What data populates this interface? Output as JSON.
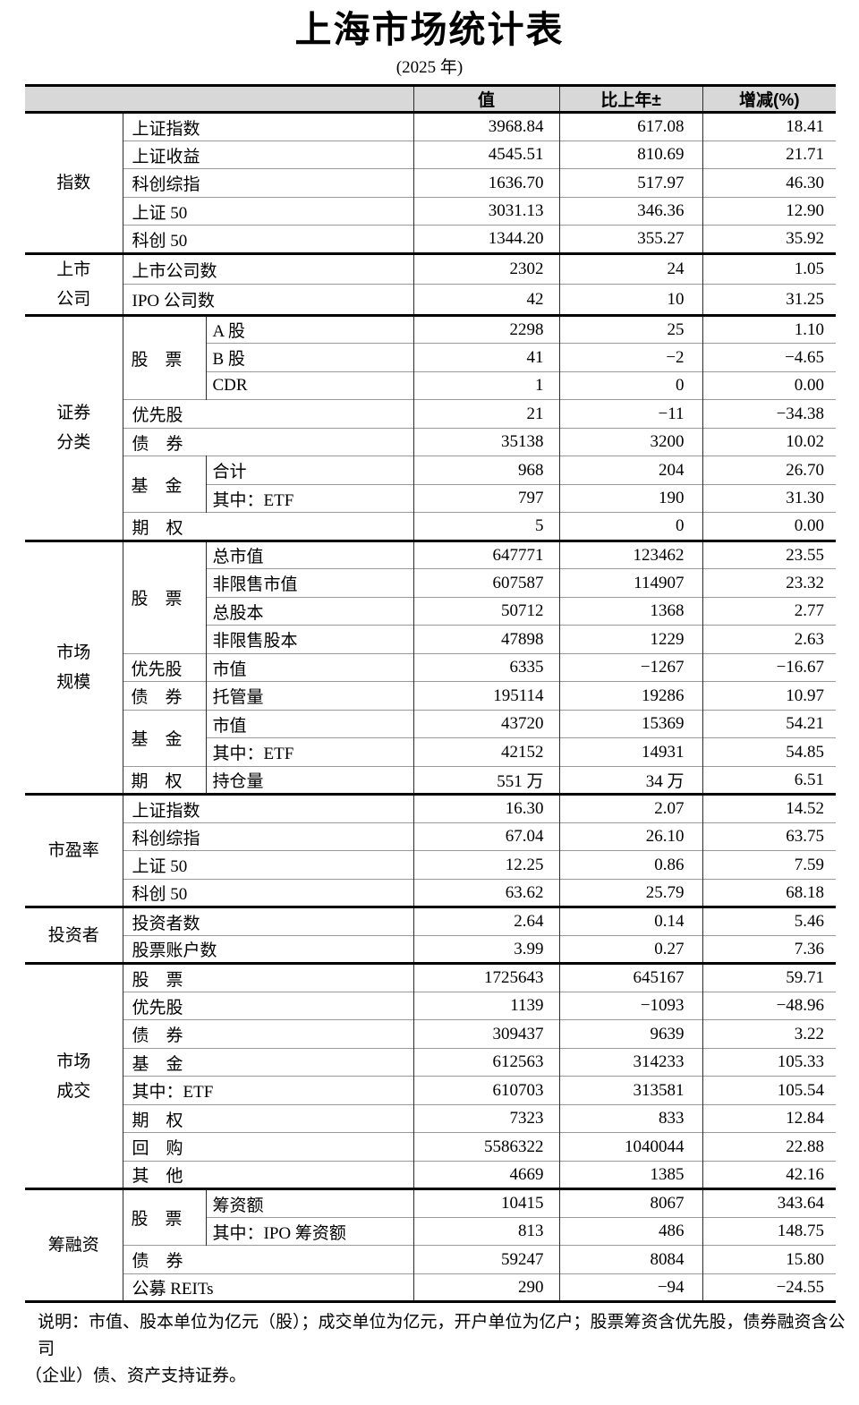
{
  "title": "上海市场统计表",
  "subtitle": "(2025 年)",
  "colors": {
    "header_bg": "#d8d8d8",
    "rule": "#000000",
    "thin_rule": "#9a9a9a"
  },
  "header": {
    "blank": "",
    "value": "值",
    "change": "比上年±",
    "pct": "增减(%)"
  },
  "sections": [
    {
      "group": "指数",
      "rows": [
        {
          "wide": true,
          "label": "上证指数",
          "value": "3968.84",
          "change": "617.08",
          "pct": "18.41"
        },
        {
          "wide": true,
          "label": "上证收益",
          "value": "4545.51",
          "change": "810.69",
          "pct": "21.71"
        },
        {
          "wide": true,
          "label": "科创综指",
          "value": "1636.70",
          "change": "517.97",
          "pct": "46.30"
        },
        {
          "wide": true,
          "label": "上证 50",
          "value": "3031.13",
          "change": "346.36",
          "pct": "12.90"
        },
        {
          "wide": true,
          "label": "科创 50",
          "value": "1344.20",
          "change": "355.27",
          "pct": "35.92"
        }
      ]
    },
    {
      "group": "上市\n公司",
      "rows": [
        {
          "wide": true,
          "label": "上市公司数",
          "value": "2302",
          "change": "24",
          "pct": "1.05"
        },
        {
          "wide": true,
          "label": "IPO 公司数",
          "value": "42",
          "change": "10",
          "pct": "31.25"
        }
      ]
    },
    {
      "group": "证券\n分类",
      "rows": [
        {
          "sub": "股　票",
          "sub_span": 3,
          "label": "A 股",
          "value": "2298",
          "change": "25",
          "pct": "1.10"
        },
        {
          "label": "B 股",
          "value": "41",
          "change": "−2",
          "pct": "−4.65"
        },
        {
          "label": "CDR",
          "value": "1",
          "change": "0",
          "pct": "0.00"
        },
        {
          "wide": true,
          "label": "优先股",
          "value": "21",
          "change": "−11",
          "pct": "−34.38"
        },
        {
          "wide": true,
          "label": "债　券",
          "value": "35138",
          "change": "3200",
          "pct": "10.02"
        },
        {
          "sub": "基　金",
          "sub_span": 2,
          "label": "合计",
          "value": "968",
          "change": "204",
          "pct": "26.70"
        },
        {
          "label": "其中：ETF",
          "value": "797",
          "change": "190",
          "pct": "31.30"
        },
        {
          "wide": true,
          "label": "期　权",
          "value": "5",
          "change": "0",
          "pct": "0.00"
        }
      ]
    },
    {
      "group": "市场\n规模",
      "rows": [
        {
          "sub": "股　票",
          "sub_span": 4,
          "label": "总市值",
          "value": "647771",
          "change": "123462",
          "pct": "23.55"
        },
        {
          "label": "非限售市值",
          "value": "607587",
          "change": "114907",
          "pct": "23.32"
        },
        {
          "label": "总股本",
          "value": "50712",
          "change": "1368",
          "pct": "2.77"
        },
        {
          "label": "非限售股本",
          "value": "47898",
          "change": "1229",
          "pct": "2.63"
        },
        {
          "sub": "优先股",
          "sub_span": 1,
          "label": "市值",
          "value": "6335",
          "change": "−1267",
          "pct": "−16.67"
        },
        {
          "sub": "债　券",
          "sub_span": 1,
          "label": "托管量",
          "value": "195114",
          "change": "19286",
          "pct": "10.97"
        },
        {
          "sub": "基　金",
          "sub_span": 2,
          "label": "市值",
          "value": "43720",
          "change": "15369",
          "pct": "54.21"
        },
        {
          "label": "其中：ETF",
          "value": "42152",
          "change": "14931",
          "pct": "54.85"
        },
        {
          "sub": "期　权",
          "sub_span": 1,
          "label": "持仓量",
          "value": "551 万",
          "change": "34 万",
          "pct": "6.51"
        }
      ]
    },
    {
      "group": "市盈率",
      "rows": [
        {
          "wide": true,
          "label": "上证指数",
          "value": "16.30",
          "change": "2.07",
          "pct": "14.52"
        },
        {
          "wide": true,
          "label": "科创综指",
          "value": "67.04",
          "change": "26.10",
          "pct": "63.75"
        },
        {
          "wide": true,
          "label": "上证 50",
          "value": "12.25",
          "change": "0.86",
          "pct": "7.59"
        },
        {
          "wide": true,
          "label": "科创 50",
          "value": "63.62",
          "change": "25.79",
          "pct": "68.18"
        }
      ]
    },
    {
      "group": "投资者",
      "rows": [
        {
          "wide": true,
          "label": "投资者数",
          "value": "2.64",
          "change": "0.14",
          "pct": "5.46"
        },
        {
          "wide": true,
          "label": "股票账户数",
          "value": "3.99",
          "change": "0.27",
          "pct": "7.36"
        }
      ]
    },
    {
      "group": "市场\n成交",
      "rows": [
        {
          "wide": true,
          "label": "股　票",
          "value": "1725643",
          "change": "645167",
          "pct": "59.71"
        },
        {
          "wide": true,
          "label": "优先股",
          "value": "1139",
          "change": "−1093",
          "pct": "−48.96"
        },
        {
          "wide": true,
          "label": "债　券",
          "value": "309437",
          "change": "9639",
          "pct": "3.22"
        },
        {
          "wide": true,
          "label": "基　金",
          "value": "612563",
          "change": "314233",
          "pct": "105.33"
        },
        {
          "wide": true,
          "label": "其中：ETF",
          "value": "610703",
          "change": "313581",
          "pct": "105.54"
        },
        {
          "wide": true,
          "label": "期　权",
          "value": "7323",
          "change": "833",
          "pct": "12.84"
        },
        {
          "wide": true,
          "label": "回　购",
          "value": "5586322",
          "change": "1040044",
          "pct": "22.88"
        },
        {
          "wide": true,
          "label": "其　他",
          "value": "4669",
          "change": "1385",
          "pct": "42.16"
        }
      ]
    },
    {
      "group": "筹融资",
      "rows": [
        {
          "sub": "股　票",
          "sub_span": 2,
          "label": "筹资额",
          "value": "10415",
          "change": "8067",
          "pct": "343.64"
        },
        {
          "label": "其中：IPO 筹资额",
          "value": "813",
          "change": "486",
          "pct": "148.75"
        },
        {
          "wide": true,
          "label": "债　券",
          "value": "59247",
          "change": "8084",
          "pct": "15.80"
        },
        {
          "wide": true,
          "label": "公募 REITs",
          "value": "290",
          "change": "−94",
          "pct": "−24.55"
        }
      ]
    }
  ],
  "note": {
    "line1": "说明：市值、股本单位为亿元（股）；成交单位为亿元，开户单位为亿户；股票筹资含优先股，债券融资含公司",
    "line2": "（企业）债、资产支持证券。"
  }
}
